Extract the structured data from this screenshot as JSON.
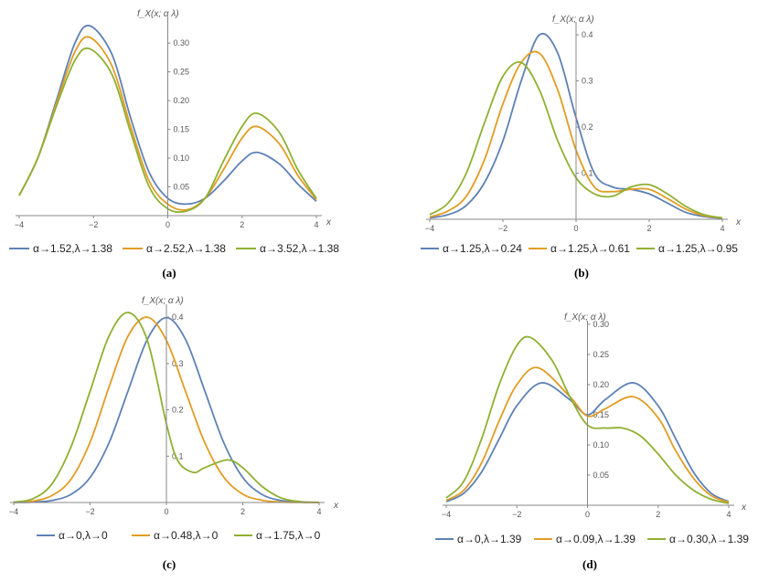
{
  "colors": {
    "series_1": "#5e81b5",
    "series_2": "#e19c24",
    "series_3": "#8fb032",
    "axis": "#888888"
  },
  "chart_data": [
    {
      "type": "line",
      "panel": "(a)",
      "ylabel": "f_X(x; α λ)",
      "xlabel": "x",
      "xlim": [
        -4,
        4
      ],
      "ylim": [
        0,
        0.34
      ],
      "xticks": [
        "-4",
        "-2",
        "0",
        "2",
        "4"
      ],
      "yticks": [
        "0.05",
        "0.10",
        "0.15",
        "0.20",
        "0.25",
        "0.30"
      ],
      "series": [
        {
          "name": "α→1.52,λ→1.38",
          "x": [
            -4,
            -3.5,
            -3,
            -2.5,
            -2.1,
            -1.5,
            -1,
            -0.5,
            0,
            0.5,
            1,
            1.5,
            2,
            2.4,
            3,
            3.5,
            4
          ],
          "y": [
            0.035,
            0.1,
            0.2,
            0.3,
            0.33,
            0.28,
            0.17,
            0.075,
            0.03,
            0.02,
            0.03,
            0.06,
            0.095,
            0.11,
            0.09,
            0.055,
            0.025
          ]
        },
        {
          "name": "α→2.52,λ→1.38",
          "x": [
            -4,
            -3.5,
            -3,
            -2.5,
            -2.1,
            -1.5,
            -1,
            -0.5,
            0,
            0.5,
            1,
            1.5,
            2,
            2.4,
            3,
            3.5,
            4
          ],
          "y": [
            0.035,
            0.1,
            0.195,
            0.285,
            0.31,
            0.26,
            0.155,
            0.06,
            0.02,
            0.01,
            0.03,
            0.08,
            0.135,
            0.155,
            0.125,
            0.07,
            0.028
          ]
        },
        {
          "name": "α→3.52,λ→1.38",
          "x": [
            -4,
            -3.5,
            -3,
            -2.5,
            -2.1,
            -1.5,
            -1,
            -0.5,
            0,
            0.5,
            1,
            1.5,
            2,
            2.4,
            3,
            3.5,
            4
          ],
          "y": [
            0.035,
            0.1,
            0.19,
            0.27,
            0.29,
            0.245,
            0.145,
            0.05,
            0.012,
            0.008,
            0.03,
            0.095,
            0.155,
            0.178,
            0.145,
            0.08,
            0.03
          ]
        }
      ]
    },
    {
      "type": "line",
      "panel": "(b)",
      "ylabel": "f_X(x; α λ)",
      "xlabel": "x",
      "xlim": [
        -4,
        4
      ],
      "ylim": [
        0,
        0.42
      ],
      "xticks": [
        "-4",
        "-2",
        "0",
        "2",
        "4"
      ],
      "yticks": [
        "0.1",
        "0.2",
        "0.3",
        "0.4"
      ],
      "series": [
        {
          "name": "α→1.25,λ→0.24",
          "x": [
            -4,
            -3.5,
            -3,
            -2.5,
            -2,
            -1.5,
            -1,
            -0.5,
            0,
            0.5,
            1,
            1.5,
            2,
            2.5,
            3,
            3.5,
            4
          ],
          "y": [
            0.003,
            0.01,
            0.03,
            0.08,
            0.17,
            0.3,
            0.4,
            0.36,
            0.22,
            0.1,
            0.07,
            0.065,
            0.055,
            0.035,
            0.015,
            0.006,
            0.002
          ]
        },
        {
          "name": "α→1.25,λ→0.61",
          "x": [
            -4,
            -3.5,
            -3,
            -2.5,
            -2,
            -1.5,
            -1,
            -0.5,
            0,
            0.5,
            1,
            1.5,
            2,
            2.5,
            3,
            3.5,
            4
          ],
          "y": [
            0.005,
            0.018,
            0.05,
            0.13,
            0.25,
            0.34,
            0.36,
            0.28,
            0.15,
            0.07,
            0.06,
            0.065,
            0.065,
            0.045,
            0.022,
            0.008,
            0.003
          ]
        },
        {
          "name": "α→1.25,λ→0.95",
          "x": [
            -4,
            -3.5,
            -3,
            -2.5,
            -2,
            -1.5,
            -1,
            -0.5,
            0,
            0.5,
            1,
            1.5,
            2,
            2.5,
            3,
            3.5,
            4
          ],
          "y": [
            0.01,
            0.035,
            0.1,
            0.21,
            0.31,
            0.34,
            0.28,
            0.17,
            0.09,
            0.055,
            0.05,
            0.07,
            0.075,
            0.055,
            0.028,
            0.01,
            0.003
          ]
        }
      ]
    },
    {
      "type": "line",
      "panel": "(c)",
      "ylabel": "f_X(x; α λ)",
      "xlabel": "x",
      "xlim": [
        -4,
        4
      ],
      "ylim": [
        0,
        0.42
      ],
      "xticks": [
        "-4",
        "-2",
        "0",
        "2",
        "4"
      ],
      "yticks": [
        "0.1",
        "0.2",
        "0.3",
        "0.4"
      ],
      "series": [
        {
          "name": "α→0,λ→0",
          "x": [
            -4,
            -3.5,
            -3,
            -2.5,
            -2,
            -1.5,
            -1,
            -0.5,
            0,
            0.5,
            1,
            1.5,
            2,
            2.5,
            3,
            3.5,
            4
          ],
          "y": [
            0.0001,
            0.0009,
            0.0044,
            0.0175,
            0.054,
            0.1295,
            0.242,
            0.352,
            0.399,
            0.352,
            0.242,
            0.1295,
            0.054,
            0.0175,
            0.0044,
            0.0009,
            0.0001
          ]
        },
        {
          "name": "α→0.48,λ→0",
          "x": [
            -4,
            -3.5,
            -3,
            -2.5,
            -2,
            -1.5,
            -1,
            -0.5,
            0,
            0.5,
            1,
            1.5,
            2,
            2.5,
            3,
            3.5,
            4
          ],
          "y": [
            0.0004,
            0.003,
            0.015,
            0.05,
            0.13,
            0.25,
            0.36,
            0.4,
            0.35,
            0.24,
            0.13,
            0.055,
            0.018,
            0.005,
            0.001,
            0.0002,
            0.0001
          ]
        },
        {
          "name": "α→1.75,λ→0",
          "x": [
            -4,
            -3.5,
            -3,
            -2.5,
            -2,
            -1.5,
            -1,
            -0.5,
            0,
            0.3,
            0.7,
            1,
            1.6,
            2,
            2.5,
            3,
            3.5,
            4
          ],
          "y": [
            0.001,
            0.008,
            0.04,
            0.12,
            0.24,
            0.36,
            0.41,
            0.35,
            0.17,
            0.09,
            0.065,
            0.075,
            0.092,
            0.075,
            0.035,
            0.01,
            0.002,
            0.0005
          ]
        }
      ]
    },
    {
      "type": "line",
      "panel": "(d)",
      "ylabel": "f_X(x; α λ)",
      "xlabel": "x",
      "xlim": [
        -4,
        4
      ],
      "ylim": [
        0,
        0.3
      ],
      "xticks": [
        "-4",
        "-2",
        "0",
        "2",
        "4"
      ],
      "yticks": [
        "0.05",
        "0.10",
        "0.15",
        "0.20",
        "0.25",
        "0.30"
      ],
      "series": [
        {
          "name": "α→0,λ→1.39",
          "x": [
            -4,
            -3.5,
            -3,
            -2.5,
            -2,
            -1.3,
            -0.5,
            0,
            0.5,
            1.3,
            2,
            2.5,
            3,
            3.5,
            4
          ],
          "y": [
            0.006,
            0.02,
            0.055,
            0.11,
            0.165,
            0.203,
            0.175,
            0.15,
            0.175,
            0.203,
            0.165,
            0.11,
            0.055,
            0.02,
            0.006
          ]
        },
        {
          "name": "α→0.09,λ→1.39",
          "x": [
            -4,
            -3.5,
            -3,
            -2.5,
            -2,
            -1.4,
            -0.5,
            0,
            0.5,
            1.3,
            2,
            2.5,
            3,
            3.5,
            4
          ],
          "y": [
            0.008,
            0.025,
            0.07,
            0.14,
            0.2,
            0.228,
            0.18,
            0.148,
            0.16,
            0.18,
            0.145,
            0.09,
            0.045,
            0.016,
            0.005
          ]
        },
        {
          "name": "α→0.30,λ→1.39",
          "x": [
            -4,
            -3.5,
            -3,
            -2.5,
            -2,
            -1.6,
            -1,
            -0.5,
            0,
            0.5,
            1,
            1.5,
            2,
            2.5,
            3,
            3.5,
            4
          ],
          "y": [
            0.012,
            0.04,
            0.11,
            0.2,
            0.265,
            0.278,
            0.24,
            0.18,
            0.133,
            0.128,
            0.128,
            0.115,
            0.085,
            0.05,
            0.025,
            0.01,
            0.003
          ]
        }
      ]
    }
  ]
}
